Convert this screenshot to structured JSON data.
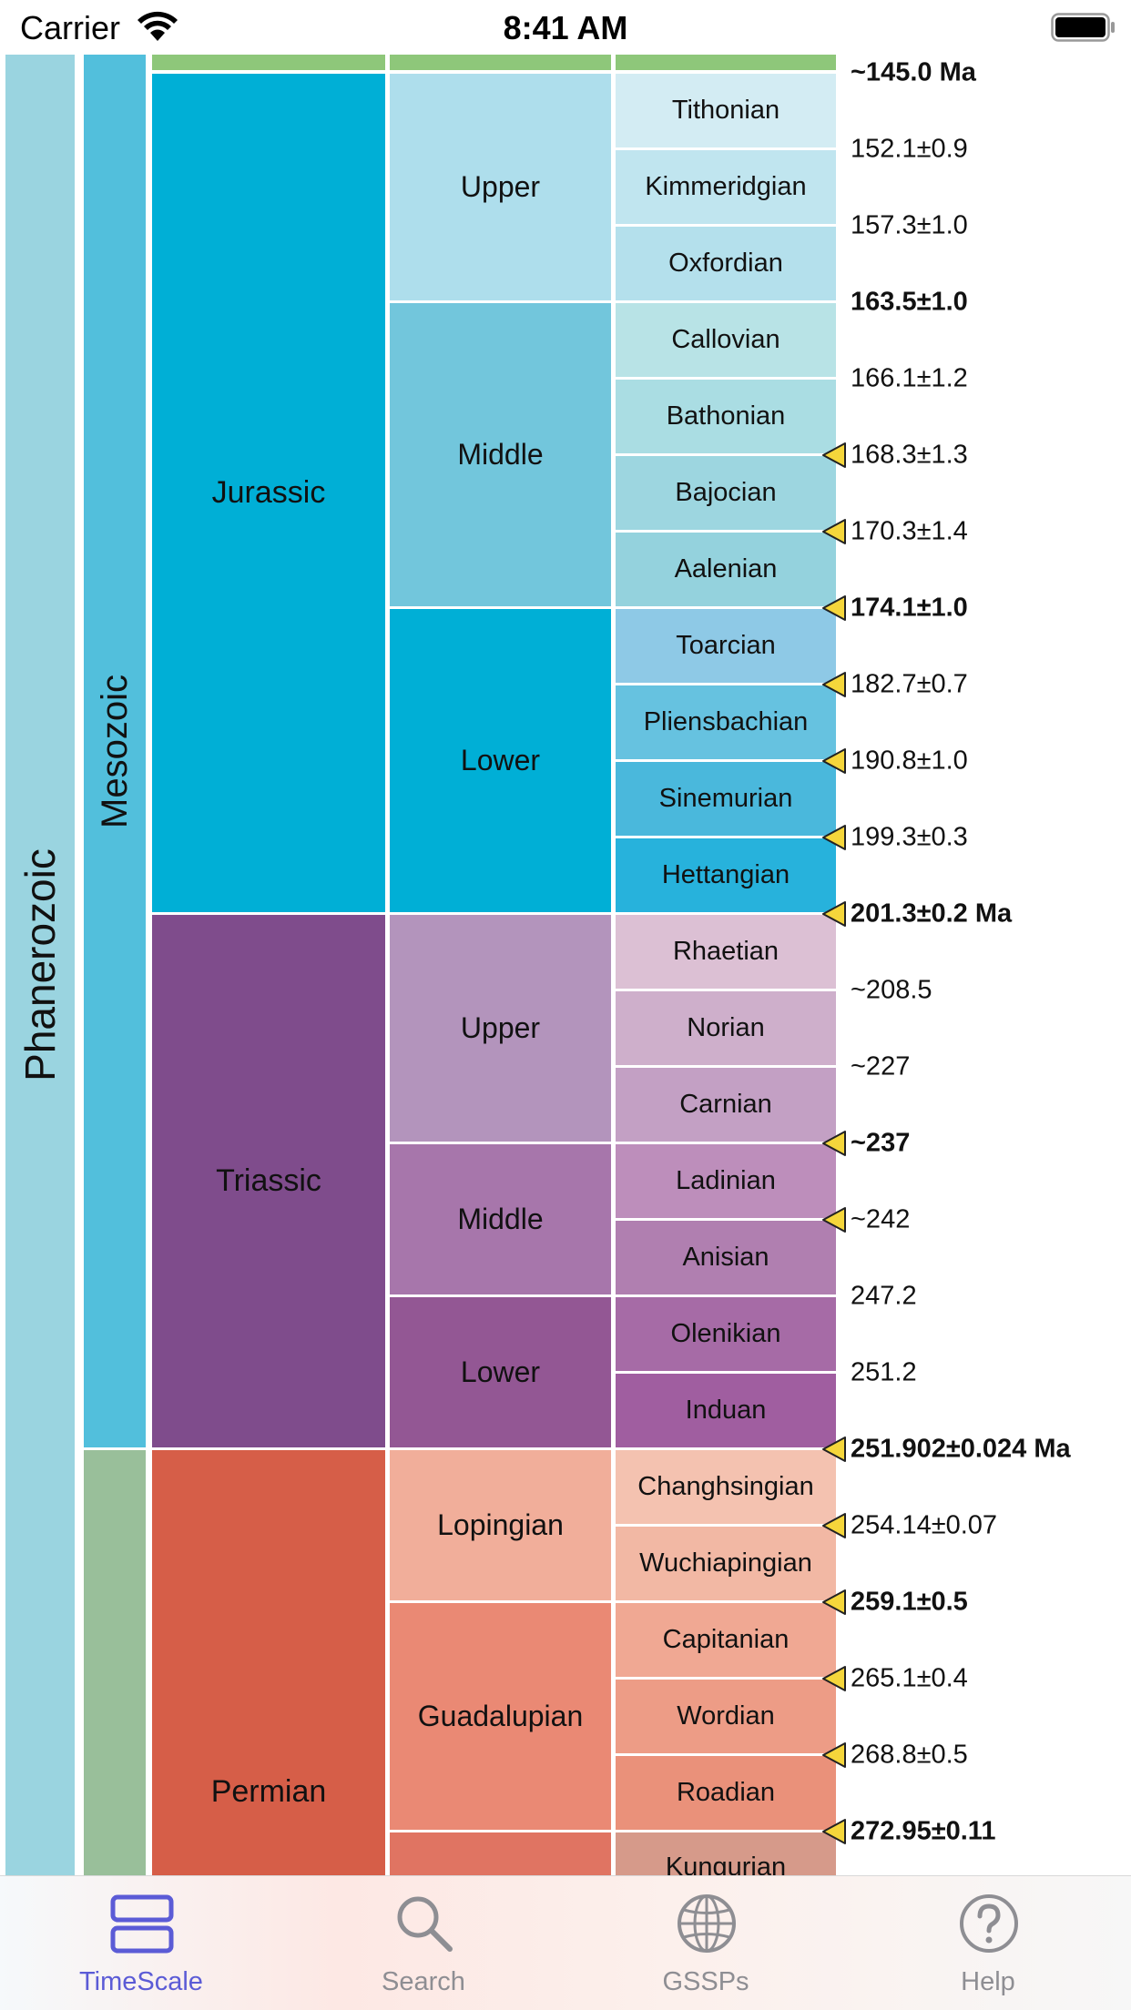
{
  "status_bar": {
    "carrier": "Carrier",
    "time": "8:41 AM"
  },
  "colors": {
    "accent": "#5b5bd6",
    "inactive_tab": "#8e8e93",
    "gssp_marker": "#f5d63b"
  },
  "timescale": {
    "eon": {
      "label": "Phanerozoic",
      "color": "#9ad4e0"
    },
    "eras": [
      {
        "label": "Mesozoic",
        "color": "#52bfdc"
      },
      {
        "label": "",
        "color": "#99bf9a"
      }
    ],
    "top_period_color": "#8ec77a",
    "periods": [
      {
        "label": "Jurassic",
        "color": "#00afd6"
      },
      {
        "label": "Triassic",
        "color": "#7f4c8c"
      },
      {
        "label": "Permian",
        "color": "#d65e48"
      }
    ],
    "epochs": [
      {
        "label": "Upper",
        "color": "#aedeec"
      },
      {
        "label": "Middle",
        "color": "#72c6dc"
      },
      {
        "label": "Lower",
        "color": "#00afd6"
      },
      {
        "label": "Upper",
        "color": "#b394bc"
      },
      {
        "label": "Middle",
        "color": "#a776ab"
      },
      {
        "label": "Lower",
        "color": "#935794"
      },
      {
        "label": "Lopingian",
        "color": "#f1ae9a"
      },
      {
        "label": "Guadalupian",
        "color": "#ea8974"
      },
      {
        "label": "",
        "color": "#e07462"
      }
    ],
    "stages": [
      {
        "label": "Tithonian",
        "color": "#d3ecf3"
      },
      {
        "label": "Kimmeridgian",
        "color": "#c0e5ef"
      },
      {
        "label": "Oxfordian",
        "color": "#b4e0ec"
      },
      {
        "label": "Callovian",
        "color": "#b8e3e6"
      },
      {
        "label": "Bathonian",
        "color": "#aadde3"
      },
      {
        "label": "Bajocian",
        "color": "#9dd6e0"
      },
      {
        "label": "Aalenian",
        "color": "#94d2dd"
      },
      {
        "label": "Toarcian",
        "color": "#8ec9e6"
      },
      {
        "label": "Pliensbachian",
        "color": "#66c2e0"
      },
      {
        "label": "Sinemurian",
        "color": "#4ab8dc"
      },
      {
        "label": "Hettangian",
        "color": "#27b2dc"
      },
      {
        "label": "Rhaetian",
        "color": "#dcc0d4"
      },
      {
        "label": "Norian",
        "color": "#ceafcb"
      },
      {
        "label": "Carnian",
        "color": "#c3a0c4"
      },
      {
        "label": "Ladinian",
        "color": "#bd8ebb"
      },
      {
        "label": "Anisian",
        "color": "#b07fb0"
      },
      {
        "label": "Olenikian",
        "color": "#a66ba6"
      },
      {
        "label": "Induan",
        "color": "#a05ea0"
      },
      {
        "label": "Changhsingian",
        "color": "#f4c2b0"
      },
      {
        "label": "Wuchiapingian",
        "color": "#f2b8a4"
      },
      {
        "label": "Capitanian",
        "color": "#f0a893"
      },
      {
        "label": "Wordian",
        "color": "#ed9c86"
      },
      {
        "label": "Roadian",
        "color": "#ea917a"
      },
      {
        "label": "Kungurian",
        "color": "#d69a8a"
      }
    ],
    "ages": [
      {
        "value": "~145.0 Ma",
        "bold": true,
        "gssp": false
      },
      {
        "value": "152.1±0.9",
        "bold": false,
        "gssp": false
      },
      {
        "value": "157.3±1.0",
        "bold": false,
        "gssp": false
      },
      {
        "value": "163.5±1.0",
        "bold": true,
        "gssp": false
      },
      {
        "value": "166.1±1.2",
        "bold": false,
        "gssp": false
      },
      {
        "value": "168.3±1.3",
        "bold": false,
        "gssp": true
      },
      {
        "value": "170.3±1.4",
        "bold": false,
        "gssp": true
      },
      {
        "value": "174.1±1.0",
        "bold": true,
        "gssp": true
      },
      {
        "value": "182.7±0.7",
        "bold": false,
        "gssp": true
      },
      {
        "value": "190.8±1.0",
        "bold": false,
        "gssp": true
      },
      {
        "value": "199.3±0.3",
        "bold": false,
        "gssp": true
      },
      {
        "value": "201.3±0.2 Ma",
        "bold": true,
        "gssp": true
      },
      {
        "value": "~208.5",
        "bold": false,
        "gssp": false
      },
      {
        "value": "~227",
        "bold": false,
        "gssp": false
      },
      {
        "value": "~237",
        "bold": true,
        "gssp": true
      },
      {
        "value": "~242",
        "bold": false,
        "gssp": true
      },
      {
        "value": "247.2",
        "bold": false,
        "gssp": false
      },
      {
        "value": "251.2",
        "bold": false,
        "gssp": false
      },
      {
        "value": "251.902±0.024 Ma",
        "bold": true,
        "gssp": true
      },
      {
        "value": "254.14±0.07",
        "bold": false,
        "gssp": true
      },
      {
        "value": "259.1±0.5",
        "bold": true,
        "gssp": true
      },
      {
        "value": "265.1±0.4",
        "bold": false,
        "gssp": true
      },
      {
        "value": "268.8±0.5",
        "bold": false,
        "gssp": true
      },
      {
        "value": "272.95±0.11",
        "bold": true,
        "gssp": true
      }
    ]
  },
  "tab_bar": {
    "tabs": [
      {
        "label": "TimeScale",
        "icon": "timescale-icon",
        "active": true
      },
      {
        "label": "Search",
        "icon": "search-icon",
        "active": false
      },
      {
        "label": "GSSPs",
        "icon": "globe-icon",
        "active": false
      },
      {
        "label": "Help",
        "icon": "help-icon",
        "active": false
      }
    ]
  }
}
